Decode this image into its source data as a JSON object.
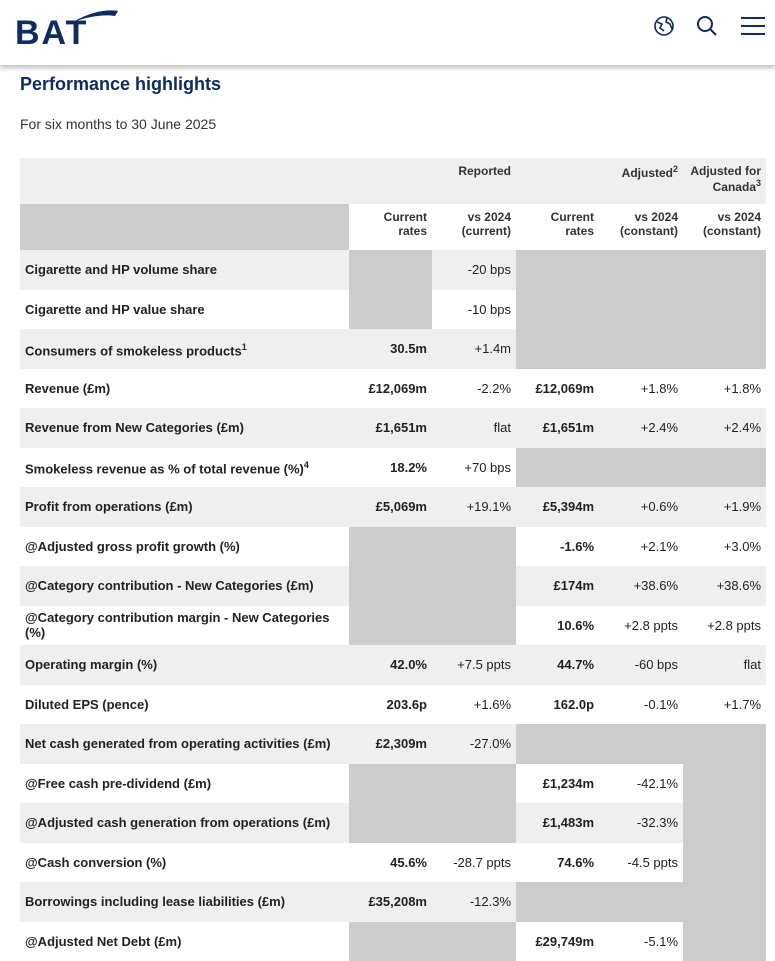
{
  "header": {
    "logo": "BAT"
  },
  "title": "Performance highlights",
  "subtitle": "For six months to 30 June 2025",
  "table": {
    "group_headers": [
      {
        "text": "Reported"
      },
      {
        "text": "Adjusted",
        "sup": "2"
      },
      {
        "text": "Adjusted for Canada",
        "sup": "3"
      }
    ],
    "columns": [
      "Current rates",
      "vs 2024 (current)",
      "Current rates",
      "vs 2024 (constant)",
      "vs 2024 (constant)"
    ],
    "rows": [
      {
        "label": "Cigarette and HP volume share",
        "cells": [
          null,
          "-20 bps",
          null,
          null,
          null
        ]
      },
      {
        "label": "Cigarette and HP value share",
        "cells": [
          null,
          "-10 bps",
          null,
          null,
          null
        ]
      },
      {
        "label": "Consumers of smokeless products",
        "sup": "1",
        "cells": [
          "30.5m",
          "+1.4m",
          null,
          null,
          null
        ]
      },
      {
        "label": "Revenue (£m)",
        "cells": [
          "£12,069m",
          "-2.2%",
          "£12,069m",
          "+1.8%",
          "+1.8%"
        ]
      },
      {
        "label": "Revenue from New Categories (£m)",
        "cells": [
          "£1,651m",
          "flat",
          "£1,651m",
          "+2.4%",
          "+2.4%"
        ]
      },
      {
        "label": "Smokeless revenue as % of total revenue (%)",
        "sup": "4",
        "cells": [
          "18.2%",
          "+70 bps",
          null,
          null,
          null
        ]
      },
      {
        "label": "Profit from operations (£m)",
        "cells": [
          "£5,069m",
          "+19.1%",
          "£5,394m",
          "+0.6%",
          "+1.9%"
        ]
      },
      {
        "label": "@Adjusted gross profit growth (%)",
        "cells": [
          null,
          null,
          "-1.6%",
          "+2.1%",
          "+3.0%"
        ]
      },
      {
        "label": "@Category contribution - New Categories (£m)",
        "cells": [
          null,
          null,
          "£174m",
          "+38.6%",
          "+38.6%"
        ]
      },
      {
        "label": "@Category contribution margin - New Categories (%)",
        "cells": [
          null,
          null,
          "10.6%",
          "+2.8 ppts",
          "+2.8 ppts"
        ]
      },
      {
        "label": "Operating margin (%)",
        "cells": [
          "42.0%",
          "+7.5 ppts",
          "44.7%",
          "-60 bps",
          "flat"
        ]
      },
      {
        "label": "Diluted EPS (pence)",
        "cells": [
          "203.6p",
          "+1.6%",
          "162.0p",
          "-0.1%",
          "+1.7%"
        ]
      },
      {
        "label": "Net cash generated from operating activities (£m)",
        "cells": [
          "£2,309m",
          "-27.0%",
          null,
          null,
          null
        ]
      },
      {
        "label": "@Free cash pre-dividend (£m)",
        "cells": [
          null,
          null,
          "£1,234m",
          "-42.1%",
          null
        ]
      },
      {
        "label": "@Adjusted cash generation from operations (£m)",
        "cells": [
          null,
          null,
          "£1,483m",
          "-32.3%",
          null
        ]
      },
      {
        "label": "@Cash conversion (%)",
        "cells": [
          "45.6%",
          "-28.7 ppts",
          "74.6%",
          "-4.5 ppts",
          null
        ]
      },
      {
        "label": "Borrowings including lease liabilities (£m)",
        "cells": [
          "£35,208m",
          "-12.3%",
          null,
          null,
          null
        ]
      },
      {
        "label": "@Adjusted Net Debt (£m)",
        "cells": [
          null,
          null,
          "£29,749m",
          "-5.1%",
          null
        ]
      }
    ]
  }
}
